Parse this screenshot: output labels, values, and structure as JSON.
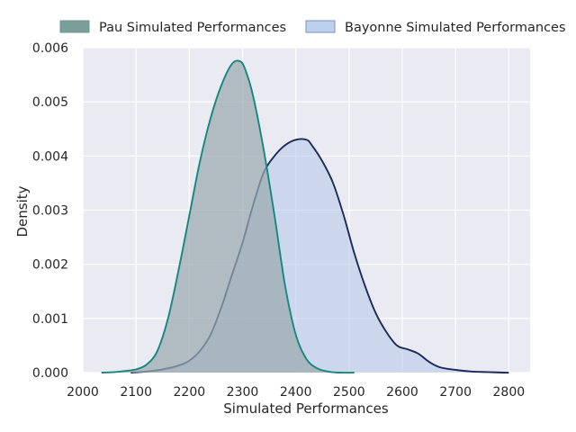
{
  "chart_data": {
    "type": "area",
    "xlabel": "Simulated Performances",
    "ylabel": "Density",
    "xlim": [
      2000,
      2840
    ],
    "ylim": [
      0,
      0.006
    ],
    "xticks": [
      2000,
      2100,
      2200,
      2300,
      2400,
      2500,
      2600,
      2700,
      2800
    ],
    "xtick_labels": [
      "2000",
      "2100",
      "2200",
      "2300",
      "2400",
      "2500",
      "2600",
      "2700",
      "2800"
    ],
    "yticks": [
      0,
      0.001,
      0.002,
      0.003,
      0.004,
      0.005,
      0.006
    ],
    "ytick_labels": [
      "0.000",
      "0.001",
      "0.002",
      "0.003",
      "0.004",
      "0.005",
      "0.006"
    ],
    "grid": true,
    "legend_position": "top",
    "background": "#eaeaf2",
    "series": [
      {
        "name": "Pau Simulated Performances",
        "line_color": "#16877e",
        "fill_color": "#9aa9ae",
        "legend_color": "#7a9e98",
        "x": [
          2035,
          2060,
          2080,
          2100,
          2120,
          2140,
          2160,
          2180,
          2200,
          2220,
          2240,
          2260,
          2280,
          2295,
          2305,
          2320,
          2340,
          2360,
          2380,
          2400,
          2420,
          2440,
          2460,
          2480,
          2510
        ],
        "y": [
          0,
          1e-05,
          3e-05,
          6e-05,
          0.00015,
          0.0004,
          0.001,
          0.0019,
          0.0029,
          0.0039,
          0.0047,
          0.0053,
          0.0057,
          0.00575,
          0.0056,
          0.0051,
          0.0041,
          0.0029,
          0.0016,
          0.0007,
          0.00025,
          8e-05,
          2e-05,
          0,
          0
        ]
      },
      {
        "name": "Bayonne Simulated Performances",
        "line_color": "#1b2a5a",
        "fill_color": "#b9cce8",
        "legend_color": "#bcd0ee",
        "x": [
          2090,
          2120,
          2150,
          2180,
          2200,
          2220,
          2240,
          2260,
          2280,
          2300,
          2320,
          2340,
          2360,
          2380,
          2400,
          2420,
          2430,
          2450,
          2470,
          2490,
          2510,
          2530,
          2550,
          2570,
          2590,
          2610,
          2630,
          2650,
          2670,
          2700,
          2730,
          2760,
          2790,
          2800
        ],
        "y": [
          0,
          2e-05,
          6e-05,
          0.00013,
          0.00022,
          0.0004,
          0.0007,
          0.0012,
          0.0018,
          0.0024,
          0.0031,
          0.0037,
          0.004,
          0.0042,
          0.0043,
          0.0043,
          0.0042,
          0.0039,
          0.0035,
          0.0029,
          0.0022,
          0.0016,
          0.0011,
          0.00075,
          0.0005,
          0.00043,
          0.00035,
          0.0002,
          0.0001,
          5e-05,
          2e-05,
          1e-05,
          0,
          0
        ]
      }
    ]
  }
}
